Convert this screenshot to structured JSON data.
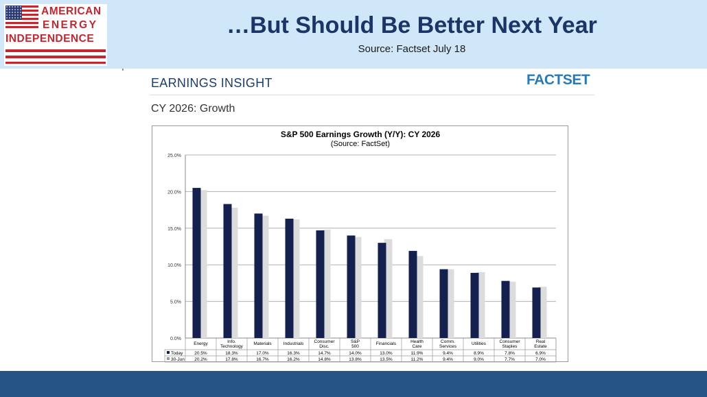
{
  "logo": {
    "line1": "AMERICAN",
    "line2": "ENERGY",
    "line3": "INDEPENDENCE",
    "colors": {
      "red": "#c4262e",
      "blue": "#2b3a73"
    }
  },
  "header": {
    "title": "…But Should Be Better Next Year",
    "subtitle": "Source: Factset July 18"
  },
  "panel": {
    "heading": "EARNINGS INSIGHT",
    "brand": "FACTSET",
    "subheading": "CY 2026: Growth"
  },
  "chart_data": {
    "type": "bar",
    "title": "S&P 500 Earnings Growth (Y/Y): CY 2026",
    "subtitle": "(Source: FactSet)",
    "categories": [
      "Energy",
      "Info. Technology",
      "Materials",
      "Industrials",
      "Consumer Disc.",
      "S&P 500",
      "Financials",
      "Health Care",
      "Comm. Services",
      "Utilities",
      "Consumer Staples",
      "Real Estate"
    ],
    "series": [
      {
        "name": "Today",
        "color": "#14214f",
        "values": [
          20.5,
          18.3,
          17.0,
          16.3,
          14.7,
          14.0,
          13.0,
          11.9,
          9.4,
          8.9,
          7.8,
          6.9
        ],
        "labels": [
          "20.5%",
          "18.3%",
          "17.0%",
          "16.3%",
          "14.7%",
          "14.0%",
          "13.0%",
          "11.9%",
          "9.4%",
          "8.9%",
          "7.8%",
          "6.9%"
        ]
      },
      {
        "name": "30-Jun",
        "color": "#dcdcdc",
        "values": [
          20.2,
          17.8,
          16.7,
          16.2,
          14.8,
          13.8,
          13.5,
          11.2,
          9.4,
          9.0,
          7.7,
          7.0
        ],
        "labels": [
          "20.2%",
          "17.8%",
          "16.7%",
          "16.2%",
          "14.8%",
          "13.8%",
          "13.5%",
          "11.2%",
          "9.4%",
          "9.0%",
          "7.7%",
          "7.0%"
        ]
      }
    ],
    "ylim": [
      0,
      25
    ],
    "yticks": [
      "0.0%",
      "5.0%",
      "10.0%",
      "15.0%",
      "20.0%",
      "25.0%"
    ],
    "grid": true,
    "legend": "data-table"
  }
}
